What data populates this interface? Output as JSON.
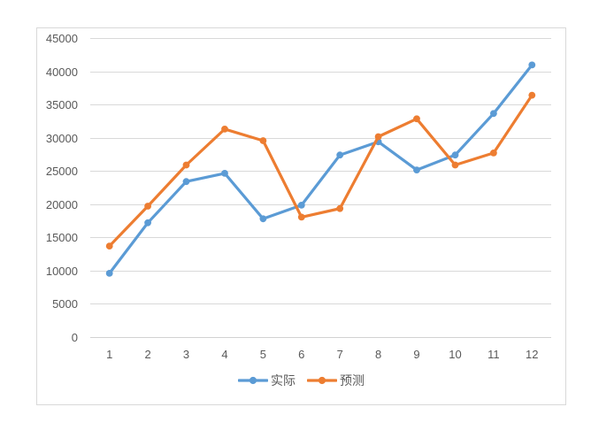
{
  "page": {
    "background": "#FFFFFF"
  },
  "chart": {
    "frame_border_color": "#D9D9D9",
    "plot_background": "#FFFFFF",
    "axis_label_color": "#595959",
    "gridline_color": "#D9D9D9",
    "axis_line_color": "#D2D2D2",
    "legend_text_color": "#595959"
  },
  "chart_data": {
    "type": "line",
    "title": "",
    "xlabel": "",
    "ylabel": "",
    "categories": [
      "1",
      "2",
      "3",
      "4",
      "5",
      "6",
      "7",
      "8",
      "9",
      "10",
      "11",
      "12"
    ],
    "series": [
      {
        "name": "实际",
        "color": "#5B9BD5",
        "marker": "circle",
        "values": [
          9600,
          17200,
          23400,
          24650,
          17800,
          19850,
          27400,
          29400,
          25150,
          27400,
          33650,
          40950
        ]
      },
      {
        "name": "预测",
        "color": "#ED7D31",
        "marker": "circle",
        "values": [
          13700,
          19700,
          25900,
          31300,
          29550,
          18050,
          19350,
          30150,
          32850,
          25900,
          27700,
          36400
        ]
      }
    ],
    "ylim": [
      0,
      45000
    ],
    "ytick_step": 5000,
    "ytick_labels": [
      "0",
      "5000",
      "10000",
      "15000",
      "20000",
      "25000",
      "30000",
      "35000",
      "40000",
      "45000"
    ],
    "grid": true,
    "legend_position": "bottom"
  }
}
